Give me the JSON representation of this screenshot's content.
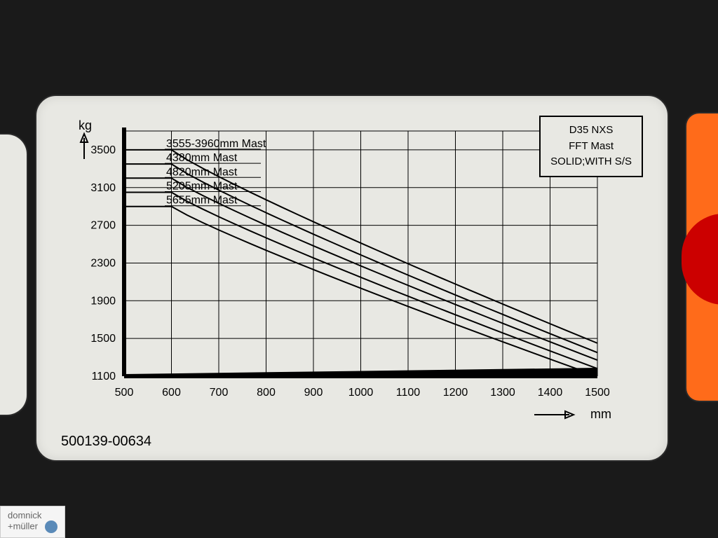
{
  "chart": {
    "type": "line",
    "y_unit": "kg",
    "x_unit": "mm",
    "y_ticks": [
      1100,
      1500,
      1900,
      2300,
      2700,
      3100,
      3500
    ],
    "x_ticks": [
      500,
      600,
      700,
      800,
      900,
      1000,
      1100,
      1200,
      1300,
      1400,
      1500
    ],
    "x_range": [
      500,
      1500
    ],
    "y_range": [
      1100,
      3700
    ],
    "line_color": "#000000",
    "line_width": 2,
    "grid_color": "#000000",
    "axis_width_heavy": 6,
    "background": "#e8e8e3",
    "series": [
      {
        "label": "3555-3960mm Mast",
        "break_x": 600,
        "start_y": 3500,
        "end_y": 1450
      },
      {
        "label": "4380mm Mast",
        "break_x": 600,
        "start_y": 3350,
        "end_y": 1350
      },
      {
        "label": "4820mm Mast",
        "break_x": 600,
        "start_y": 3200,
        "end_y": 1270
      },
      {
        "label": "5205mm Mast",
        "break_x": 600,
        "start_y": 3050,
        "end_y": 1180
      },
      {
        "label": "5655mm Mast",
        "break_x": 600,
        "start_y": 2900,
        "end_y": 1100
      }
    ],
    "font_size_tick": 16,
    "font_size_label": 16
  },
  "info_box": {
    "line1": "D35 NXS",
    "line2": "FFT Mast",
    "line3": "SOLID;WITH S/S"
  },
  "part_number": "500139-00634",
  "watermark": {
    "line1": "domnick",
    "line2": "+müller"
  }
}
